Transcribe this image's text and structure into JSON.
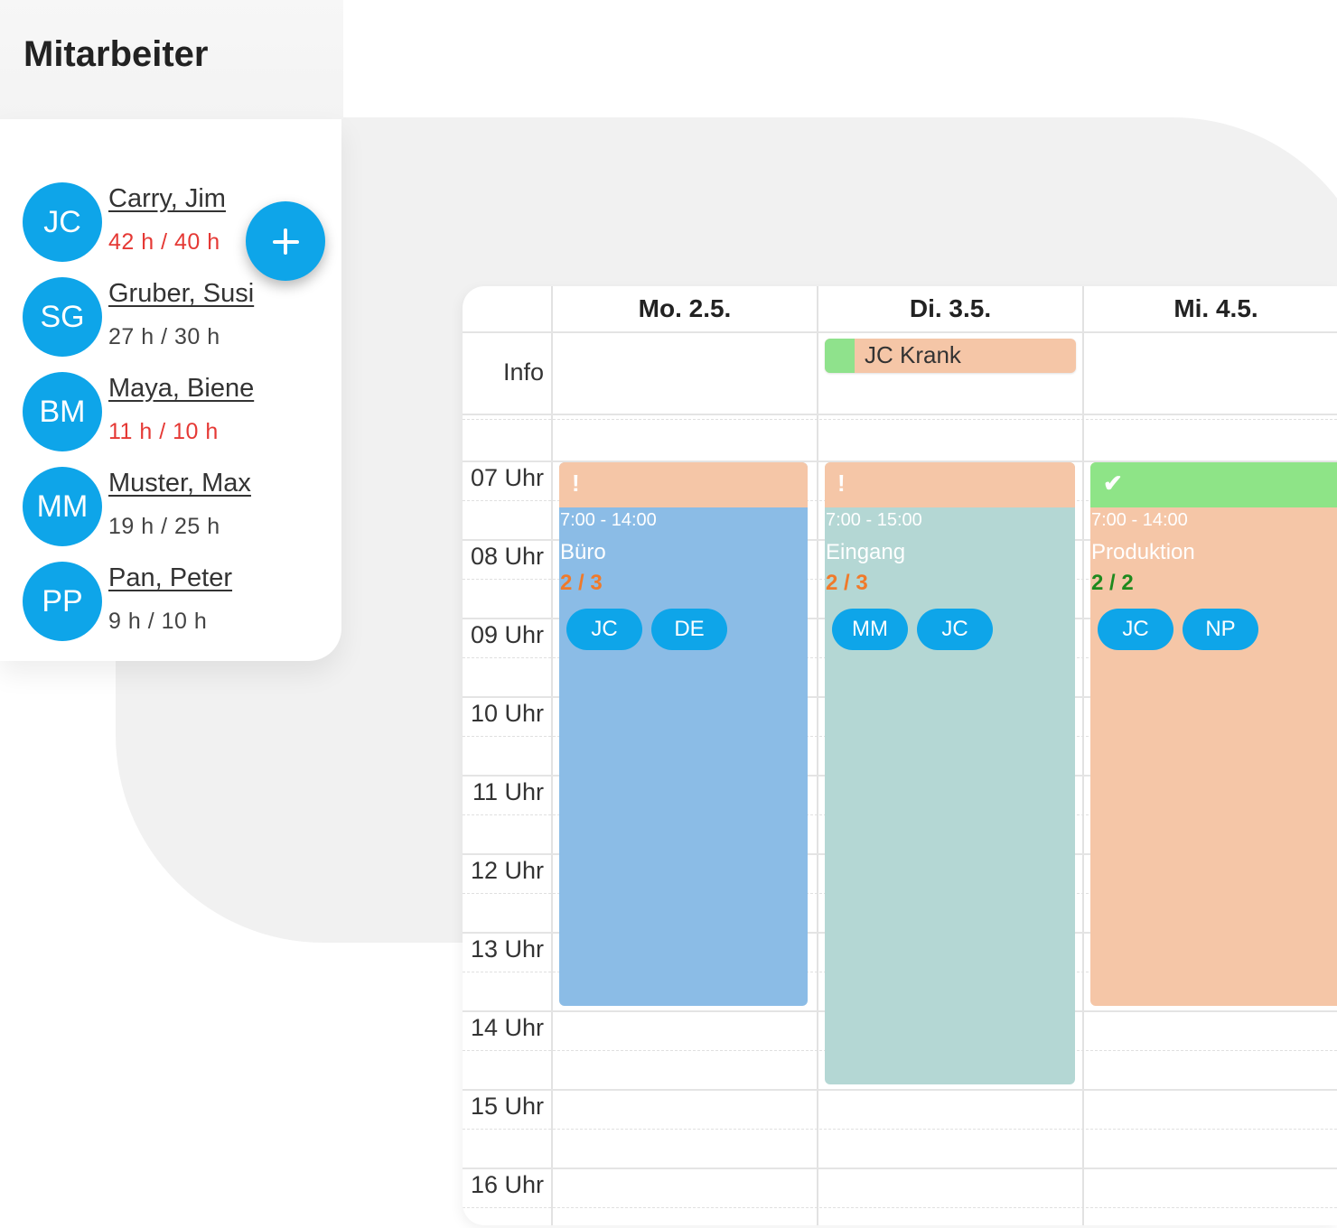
{
  "employees": {
    "title": "Mitarbeiter",
    "add_icon": "plus-icon",
    "list": [
      {
        "initials": "JC",
        "name": "Carry, Jim",
        "hours": "42 h / 40 h",
        "over": true
      },
      {
        "initials": "SG",
        "name": "Gruber, Susi",
        "hours": "27 h / 30 h",
        "over": false
      },
      {
        "initials": "BM",
        "name": "Maya, Biene",
        "hours": "11 h / 10 h",
        "over": true
      },
      {
        "initials": "MM",
        "name": "Muster, Max",
        "hours": "19 h / 25 h",
        "over": false
      },
      {
        "initials": "PP",
        "name": "Pan, Peter",
        "hours": "9 h / 10 h",
        "over": false
      }
    ]
  },
  "calendar": {
    "days": [
      "Mo. 2.5.",
      "Di. 3.5.",
      "Mi. 4.5."
    ],
    "info_label": "Info",
    "info_event": {
      "text": "JC Krank",
      "color": "#f5c6a7",
      "stripe_color": "#8fe28c"
    },
    "hours": [
      "07 Uhr",
      "08 Uhr",
      "09 Uhr",
      "10 Uhr",
      "11 Uhr",
      "12 Uhr",
      "13 Uhr",
      "14 Uhr",
      "15 Uhr",
      "16 Uhr"
    ],
    "shifts": [
      {
        "time": "7:00 - 14:00",
        "place": "Büro",
        "count": "2 / 3",
        "status": "warning",
        "status_icon": "exclamation-icon",
        "status_color": "#f5c6a7",
        "body_color": "#8bbce6",
        "count_color": "#f07a2a",
        "staff": [
          "JC",
          "DE"
        ]
      },
      {
        "time": "7:00 - 15:00",
        "place": "Eingang",
        "count": "2 / 3",
        "status": "warning",
        "status_icon": "exclamation-icon",
        "status_color": "#f5c6a7",
        "body_color": "#b4d7d4",
        "count_color": "#f07a2a",
        "staff": [
          "MM",
          "JC"
        ]
      },
      {
        "time": "7:00 - 14:00",
        "place": "Produktion",
        "count": "2 / 2",
        "status": "ok",
        "status_icon": "check-icon",
        "status_color": "#8ee487",
        "body_color": "#f5c6a7",
        "count_color": "#1e8a1e",
        "staff": [
          "JC",
          "NP"
        ]
      }
    ],
    "colors": {
      "accent": "#0ea5e9",
      "over_hours": "#e53935"
    }
  }
}
